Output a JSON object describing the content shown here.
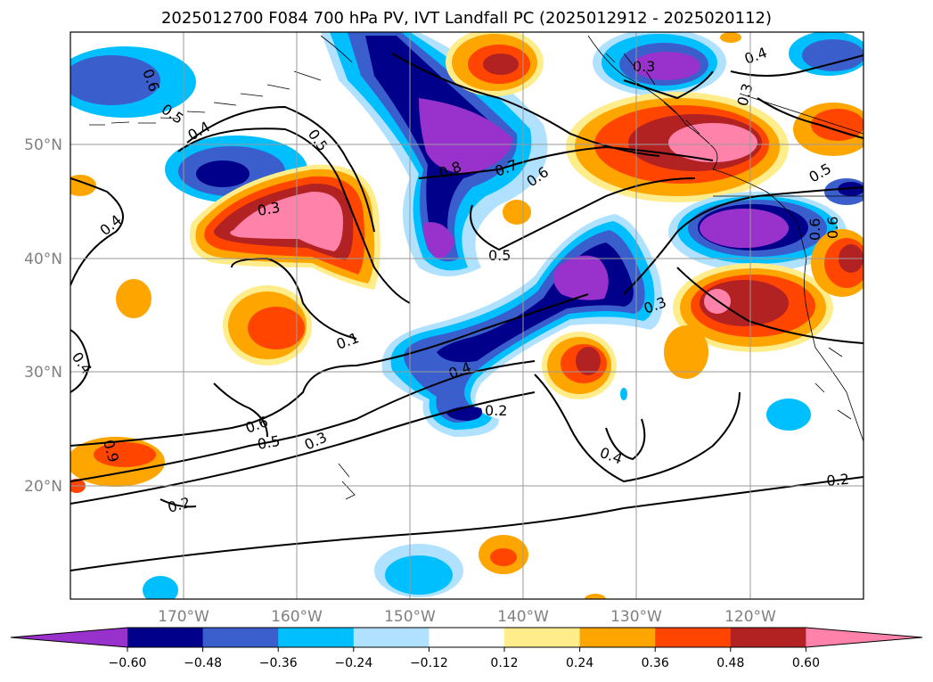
{
  "title": "2025012700 F084 700 hPa PV, IVT Landfall PC (2025012912 - 2025020112)",
  "lat_labels": [
    "50°N",
    "40°N",
    "30°N",
    "20°N"
  ],
  "lon_labels": [
    "170°W",
    "160°W",
    "150°W",
    "140°W",
    "130°W",
    "120°W"
  ],
  "colorbar": {
    "ticks": [
      "−0.60",
      "−0.48",
      "−0.36",
      "−0.24",
      "−0.12",
      "0.12",
      "0.24",
      "0.36",
      "0.48",
      "0.60"
    ],
    "colors": [
      "#9932cc",
      "#00008b",
      "#3a5fcd",
      "#00bfff",
      "#b0e2ff",
      "#ffffff",
      "#ffec8b",
      "#ffa500",
      "#ff4500",
      "#b22222",
      "#ff82ab"
    ]
  },
  "contour_labels": [
    "0.6",
    "0.5",
    "0.4",
    "0.5",
    "0.3",
    "0.4",
    "0.8",
    "0.7",
    "0.6",
    "0.5",
    "0.3",
    "0.4",
    "0.3",
    "0.3",
    "0.5",
    "0.6",
    "0.6",
    "0.4",
    "0.1",
    "0.4",
    "0.2",
    "0.6",
    "0.5",
    "0.3",
    "0.9",
    "0.2",
    "0.4",
    "0.2"
  ]
}
